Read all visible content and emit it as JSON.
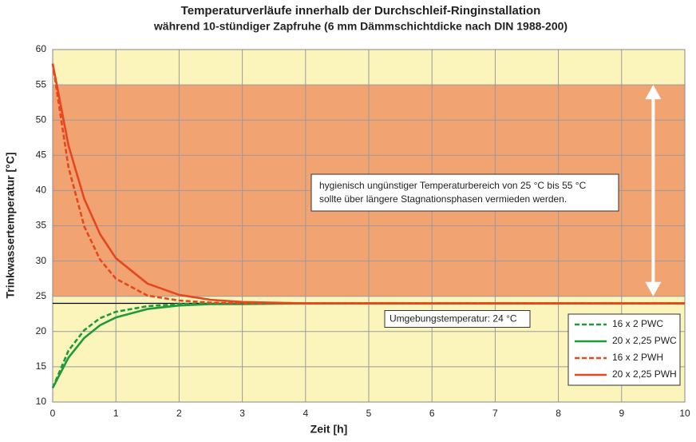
{
  "chart_data": {
    "type": "line",
    "title": "Temperaturverläufe innerhalb der Durchschleif-Ringinstallation",
    "subtitle": "während 10-stündiger Zapfruhe  (6 mm Dämmschichtdicke nach DIN 1988-200)",
    "x_label": "Zeit  [h]",
    "y_label": "Trinkwassertemperatur [°C]",
    "x": [
      0,
      0.25,
      0.5,
      0.75,
      1,
      1.5,
      2,
      2.5,
      3,
      4,
      5,
      6,
      7,
      8,
      9,
      10
    ],
    "series": [
      {
        "name": "16 x 2 PWC",
        "color": "#1e9a3c",
        "line_style": "dashed",
        "values": [
          12,
          17.3,
          20.2,
          21.9,
          22.8,
          23.6,
          23.9,
          24.0,
          24,
          24,
          24,
          24,
          24,
          24,
          24,
          24
        ]
      },
      {
        "name": "20 x 2,25 PWC",
        "color": "#1e9a3c",
        "line_style": "solid",
        "values": [
          12,
          16.3,
          19.1,
          20.9,
          22.0,
          23.2,
          23.7,
          23.9,
          23.9,
          24,
          24,
          24,
          24,
          24,
          24,
          24
        ]
      },
      {
        "name": "16 x 2 PWH",
        "color": "#e8461e",
        "line_style": "dashed",
        "values": [
          58,
          43.3,
          34.9,
          30.2,
          27.5,
          25.1,
          24.4,
          24.1,
          24.0,
          24,
          24,
          24,
          24,
          24,
          24,
          24
        ]
      },
      {
        "name": "20 x 2,25 PWH",
        "color": "#e8461e",
        "line_style": "solid",
        "values": [
          58,
          46.4,
          38.8,
          33.8,
          30.4,
          26.8,
          25.2,
          24.5,
          24.2,
          24.0,
          24,
          24,
          24,
          24,
          24,
          24
        ]
      }
    ],
    "xlim": [
      0,
      10
    ],
    "xticks": [
      0,
      1,
      2,
      3,
      4,
      5,
      6,
      7,
      8,
      9,
      10
    ],
    "ylim": [
      10,
      60
    ],
    "yticks": [
      10,
      15,
      20,
      25,
      30,
      35,
      40,
      45,
      50,
      55,
      60
    ],
    "grid": true,
    "background_color": "#fbf5bb",
    "band": {
      "from": 25,
      "to": 55,
      "color": "#f2a372"
    },
    "band_note": [
      "hygienisch ungünstiger Temperaturbereich von 25 °C bis 55 °C",
      "sollte über längere Stagnationsphasen vermieden werden."
    ],
    "reference_line": {
      "value": 24,
      "label": "Umgebungstemperatur: 24 °C"
    },
    "legend": "lower right"
  }
}
